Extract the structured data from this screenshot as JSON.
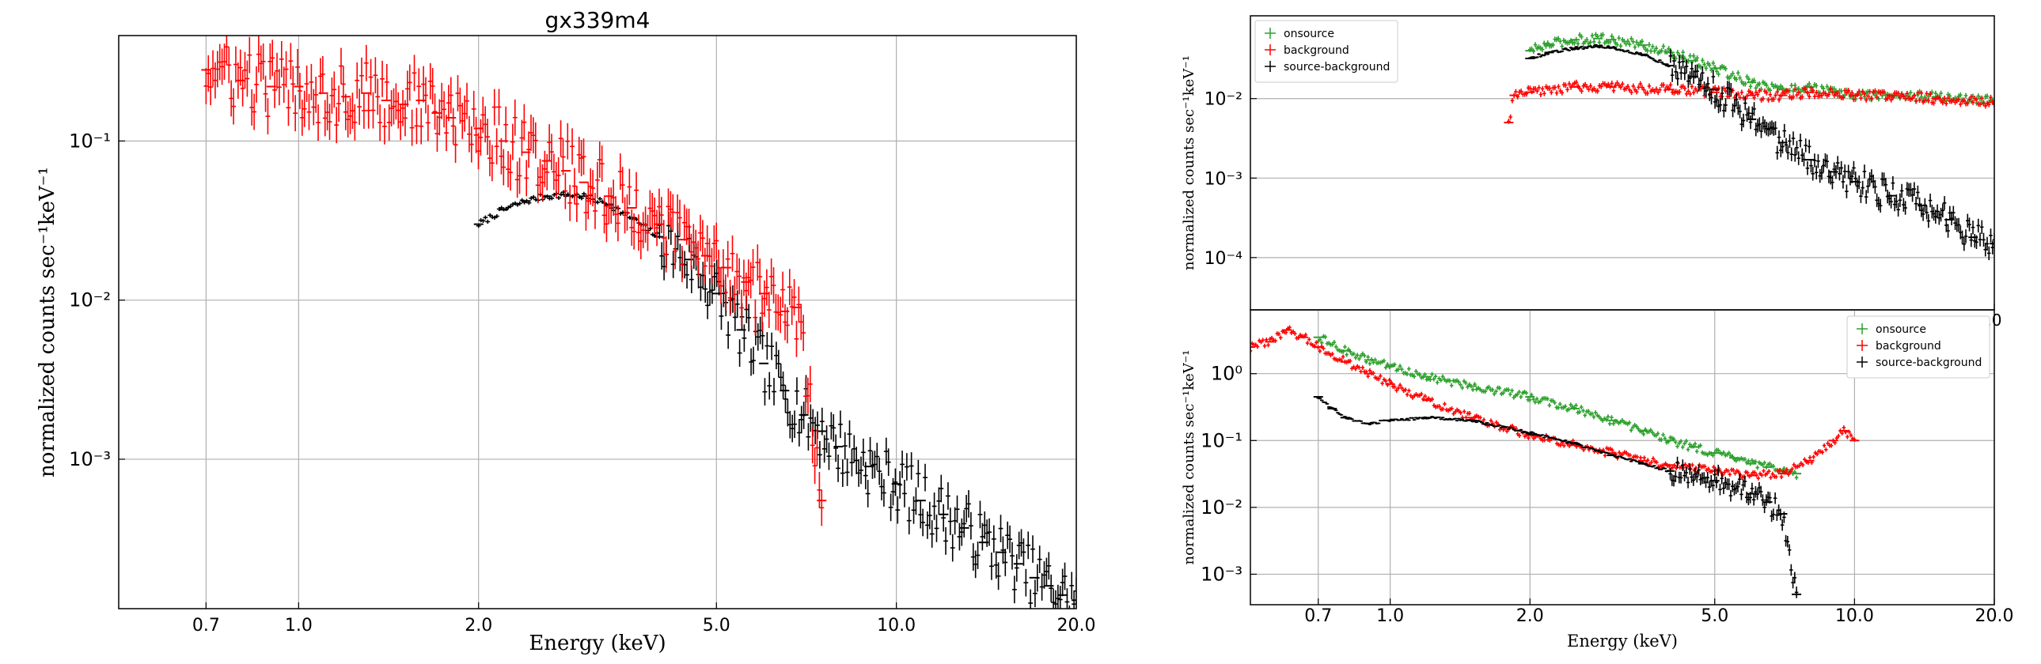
{
  "colors": {
    "black": "#000000",
    "red": "#ff0000",
    "green": "#2ca02c",
    "grid": "#b0b0b0"
  },
  "chart_data": [
    {
      "type": "scatter",
      "title": "gx339m4",
      "xlabel": "Energy (keV)",
      "ylabel": "normalized counts sec⁻¹keV⁻¹",
      "xscale": "log",
      "yscale": "log",
      "xlim": [
        0.5,
        20.0
      ],
      "ylim": [
        0.000115,
        0.46
      ],
      "grid": true,
      "legend": null,
      "xticks": [
        0.7,
        1.0,
        2.0,
        5.0,
        10.0,
        20.0
      ],
      "xticklabels": [
        "0.7",
        "1.0",
        "2.0",
        "5.0",
        "10.0",
        "20.0"
      ],
      "yticks": [
        0.001,
        0.01,
        0.1
      ],
      "yticklabels": [
        "10⁻³",
        "10⁻²",
        "10⁻¹"
      ],
      "series": [
        {
          "color": "#000000",
          "x": [
            2.0,
            2.2,
            2.4,
            2.6,
            2.8,
            3.0,
            3.3,
            3.6,
            4.0,
            4.5,
            5.0,
            5.5,
            6.0,
            6.5,
            7.0,
            7.5,
            8.0,
            9.0,
            10.0,
            11.0,
            12.0,
            13.0,
            14.0,
            15.0,
            16.0,
            17.0,
            18.0,
            19.0,
            20.0
          ],
          "y": [
            0.03,
            0.037,
            0.042,
            0.045,
            0.046,
            0.045,
            0.04,
            0.033,
            0.025,
            0.018,
            0.011,
            0.0065,
            0.004,
            0.0027,
            0.0019,
            0.0015,
            0.0012,
            0.0009,
            0.0007,
            0.00055,
            0.00045,
            0.00037,
            0.0003,
            0.00026,
            0.00022,
            0.00018,
            0.00016,
            0.00014,
            0.00013
          ]
        },
        {
          "color": "#ff0000",
          "x": [
            0.7,
            0.8,
            0.9,
            1.0,
            1.1,
            1.2,
            1.3,
            1.4,
            1.5,
            1.6,
            1.7,
            1.8,
            2.0,
            2.2,
            2.4,
            2.6,
            2.8,
            3.0,
            3.3,
            3.6,
            4.0,
            4.4,
            4.8,
            5.2,
            5.6,
            6.0,
            6.5,
            6.8,
            7.5
          ],
          "y": [
            0.28,
            0.24,
            0.22,
            0.22,
            0.2,
            0.19,
            0.2,
            0.18,
            0.17,
            0.18,
            0.15,
            0.14,
            0.12,
            0.1,
            0.085,
            0.075,
            0.065,
            0.055,
            0.045,
            0.038,
            0.03,
            0.024,
            0.019,
            0.016,
            0.013,
            0.011,
            0.0085,
            0.009,
            0.00055
          ]
        }
      ]
    },
    {
      "type": "scatter",
      "xlabel": "",
      "ylabel": "normalized counts sec⁻¹keV⁻¹",
      "xscale": "log",
      "yscale": "log",
      "xlim": [
        0.5,
        20.0
      ],
      "ylim": [
        2.2e-05,
        0.11
      ],
      "grid": true,
      "legend": "top-left",
      "xticks": [
        20.0
      ],
      "xticklabels": [
        ".0"
      ],
      "yticks": [
        0.0001,
        0.001,
        0.01
      ],
      "yticklabels": [
        "10⁻⁴",
        "10⁻³",
        "10⁻²"
      ],
      "series": [
        {
          "name": "onsource",
          "color": "#2ca02c",
          "x": [
            2.0,
            2.2,
            2.5,
            2.8,
            3.0,
            3.5,
            4.0,
            4.5,
            5.0,
            6.0,
            7.0,
            8.0,
            9.0,
            10.0,
            12.0,
            15.0,
            20.0
          ],
          "y": [
            0.04,
            0.048,
            0.055,
            0.057,
            0.055,
            0.047,
            0.038,
            0.03,
            0.024,
            0.016,
            0.013,
            0.014,
            0.012,
            0.011,
            0.011,
            0.0105,
            0.0095
          ]
        },
        {
          "name": "background",
          "color": "#ff0000",
          "x": [
            1.8,
            1.85,
            2.0,
            2.5,
            3.0,
            4.0,
            5.0,
            6.0,
            7.0,
            8.0,
            10.0,
            12.0,
            15.0,
            20.0
          ],
          "y": [
            0.005,
            0.011,
            0.012,
            0.014,
            0.014,
            0.013,
            0.012,
            0.011,
            0.011,
            0.012,
            0.011,
            0.011,
            0.01,
            0.009
          ]
        },
        {
          "name": "source-background",
          "color": "#000000",
          "x": [
            2.0,
            2.2,
            2.5,
            2.8,
            3.0,
            3.5,
            4.0,
            4.5,
            5.0,
            6.0,
            7.0,
            8.0,
            9.0,
            10.0,
            12.0,
            14.0,
            16.0,
            18.0,
            20.0
          ],
          "y": [
            0.032,
            0.038,
            0.043,
            0.046,
            0.044,
            0.036,
            0.026,
            0.019,
            0.013,
            0.0055,
            0.0028,
            0.0017,
            0.0012,
            0.0009,
            0.0006,
            0.00045,
            0.0003,
            0.00018,
            0.00015
          ]
        }
      ]
    },
    {
      "type": "scatter",
      "xlabel": "Energy (keV)",
      "ylabel": "normalized counts sec⁻¹keV⁻¹",
      "xscale": "log",
      "yscale": "log",
      "xlim": [
        0.5,
        20.0
      ],
      "ylim": [
        0.00035,
        9.0
      ],
      "grid": true,
      "legend": "top-right",
      "xticks": [
        0.7,
        1.0,
        2.0,
        5.0,
        10.0,
        20.0
      ],
      "xticklabels": [
        "0.7",
        "1.0",
        "2.0",
        "5.0",
        "10.0",
        "20.0"
      ],
      "yticks": [
        0.001,
        0.01,
        0.1,
        1.0
      ],
      "yticklabels": [
        "10⁻³",
        "10⁻²",
        "10⁻¹",
        "10⁰"
      ],
      "series": [
        {
          "name": "onsource",
          "color": "#2ca02c",
          "x": [
            0.7,
            0.8,
            0.9,
            1.0,
            1.2,
            1.5,
            2.0,
            2.5,
            3.0,
            3.5,
            4.0,
            4.5,
            5.0,
            5.5,
            6.0,
            6.5,
            7.0,
            7.5
          ],
          "y": [
            3.5,
            2.2,
            1.6,
            1.3,
            0.9,
            0.65,
            0.45,
            0.3,
            0.2,
            0.14,
            0.1,
            0.08,
            0.065,
            0.055,
            0.045,
            0.04,
            0.035,
            0.032
          ]
        },
        {
          "name": "background",
          "color": "#ff0000",
          "x": [
            0.5,
            0.55,
            0.6,
            0.65,
            0.7,
            0.8,
            0.9,
            1.0,
            1.2,
            1.5,
            2.0,
            2.5,
            3.0,
            3.5,
            4.0,
            5.0,
            6.0,
            7.0,
            8.0,
            9.0,
            9.5,
            10.0
          ],
          "y": [
            2.5,
            3.0,
            4.5,
            3.5,
            2.5,
            1.5,
            1.0,
            0.7,
            0.4,
            0.22,
            0.12,
            0.085,
            0.065,
            0.05,
            0.043,
            0.035,
            0.03,
            0.032,
            0.05,
            0.1,
            0.14,
            0.1
          ]
        },
        {
          "name": "source-background",
          "color": "#000000",
          "x": [
            0.7,
            0.75,
            0.8,
            0.9,
            1.0,
            1.2,
            1.5,
            2.0,
            2.5,
            3.0,
            3.5,
            4.0,
            5.0,
            6.0,
            6.5,
            7.0,
            7.5
          ],
          "y": [
            0.45,
            0.3,
            0.22,
            0.18,
            0.2,
            0.22,
            0.2,
            0.13,
            0.09,
            0.06,
            0.045,
            0.035,
            0.025,
            0.016,
            0.012,
            0.008,
            0.0005
          ]
        }
      ]
    }
  ]
}
